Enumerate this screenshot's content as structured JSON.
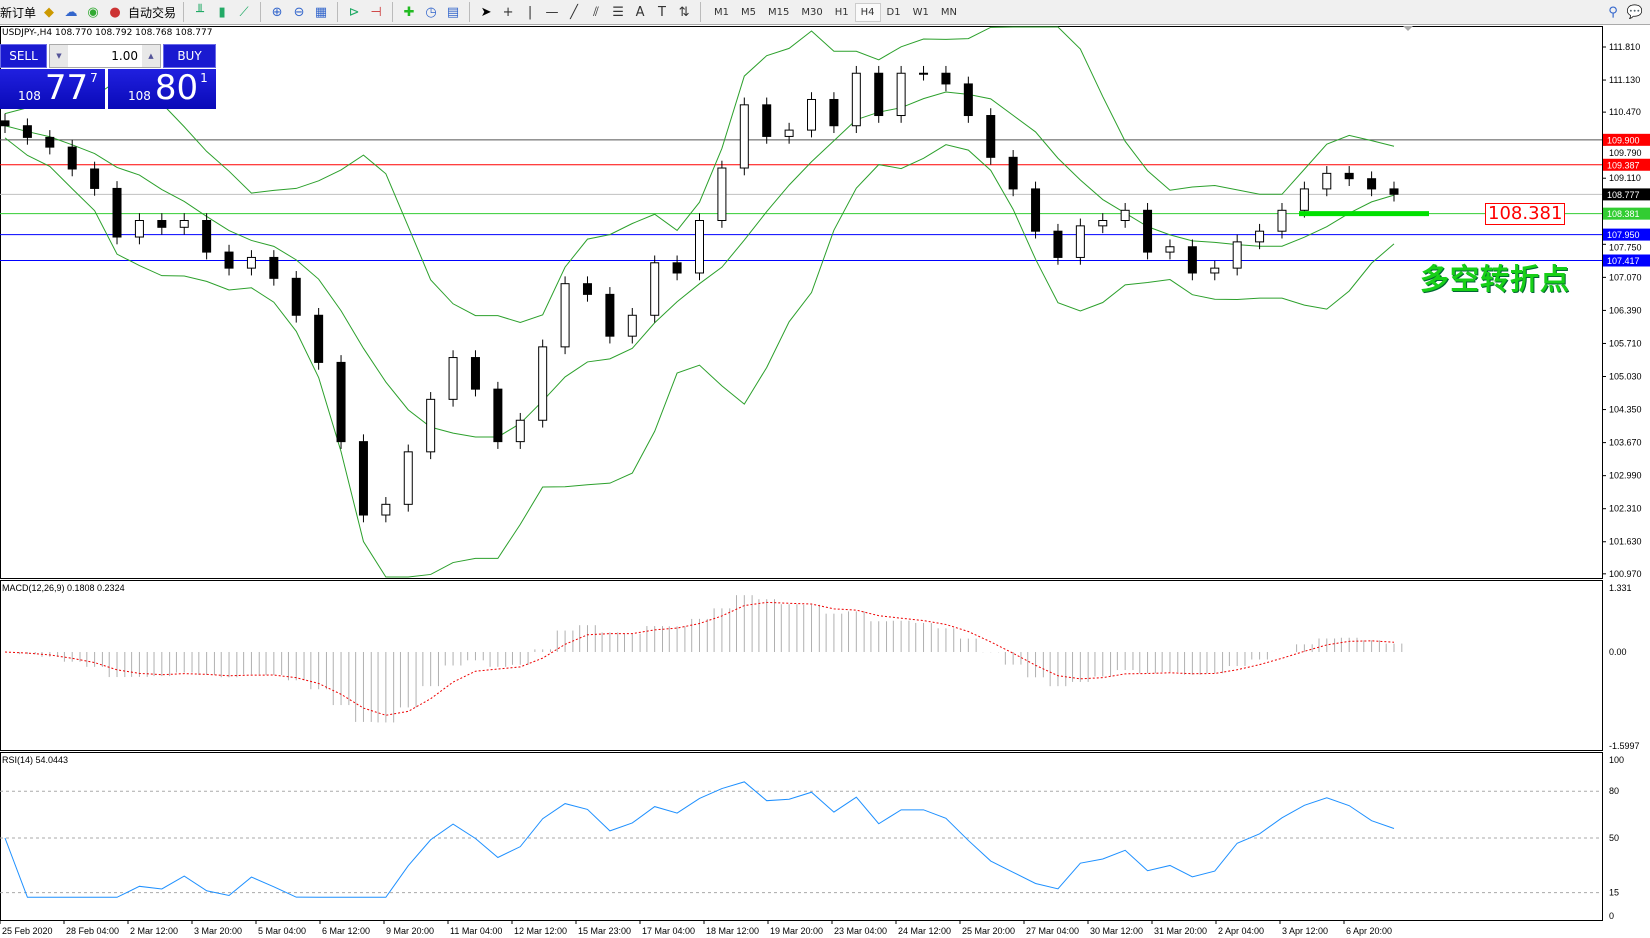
{
  "toolbar": {
    "new_order": "新订单",
    "auto_trade": "自动交易",
    "icons": [
      "book-icon",
      "cloud-icon",
      "signal-icon",
      "bar-chart-icon",
      "candle-chart-icon",
      "line-chart-icon",
      "zoom-in-icon",
      "zoom-out-icon",
      "tile-icon",
      "autoscroll-icon",
      "chart-shift-icon",
      "indicators-icon",
      "periods-icon",
      "templates-icon",
      "cursor-icon",
      "crosshair-icon",
      "vline-icon",
      "hline-icon",
      "trendline-icon",
      "fibo-icon",
      "grid-icon",
      "text-icon",
      "label-icon",
      "arrows-icon"
    ],
    "timeframes": [
      "M1",
      "M5",
      "M15",
      "M30",
      "H1",
      "H4",
      "D1",
      "W1",
      "MN"
    ],
    "active_timeframe": "H4"
  },
  "chart": {
    "header": "USDJPY-,H4  108.770 108.792 108.768 108.777",
    "sell_label": "SELL",
    "buy_label": "BUY",
    "lot": "1.00",
    "sell_price": {
      "small": "108",
      "big": "77",
      "sup": "7"
    },
    "buy_price": {
      "small": "108",
      "big": "80",
      "sup": "1"
    },
    "annotation": "多空转折点",
    "annotation_price": "108.381",
    "price_ticks": [
      "111.810",
      "111.130",
      "110.470",
      "109.790",
      "109.110",
      "107.750",
      "107.070",
      "106.390",
      "105.710",
      "105.030",
      "104.350",
      "103.670",
      "102.990",
      "102.310",
      "101.630",
      "100.970"
    ],
    "levels": [
      {
        "price": 109.9,
        "label": "109.900",
        "color": "#ff0000",
        "line": "#555555"
      },
      {
        "price": 109.387,
        "label": "109.387",
        "color": "#ff0000",
        "line": "#ff0000"
      },
      {
        "price": 108.777,
        "label": "108.777",
        "color": "#000000",
        "line": "#c0c0c0"
      },
      {
        "price": 108.381,
        "label": "108.381",
        "color": "#32cd32",
        "line": "#32cd32"
      },
      {
        "price": 107.95,
        "label": "107.950",
        "color": "#0000ff",
        "line": "#0000ff"
      },
      {
        "price": 107.417,
        "label": "107.417",
        "color": "#0000ff",
        "line": "#0000ff"
      }
    ],
    "time_labels": [
      "25 Feb 2020",
      "28 Feb 04:00",
      "2 Mar 12:00",
      "3 Mar 20:00",
      "5 Mar 04:00",
      "6 Mar 12:00",
      "9 Mar 20:00",
      "11 Mar 04:00",
      "12 Mar 12:00",
      "15 Mar 23:00",
      "17 Mar 04:00",
      "18 Mar 12:00",
      "19 Mar 20:00",
      "23 Mar 04:00",
      "24 Mar 12:00",
      "25 Mar 20:00",
      "27 Mar 04:00",
      "30 Mar 12:00",
      "31 Mar 20:00",
      "2 Apr 04:00",
      "3 Apr 12:00",
      "6 Apr 20:00"
    ]
  },
  "macd": {
    "label": "MACD(12,26,9) 0.1808 0.2324",
    "ticks": [
      "1.331",
      "0.00",
      "-1.5997"
    ]
  },
  "rsi": {
    "label": "RSI(14) 54.0443",
    "ticks": [
      "100",
      "80",
      "50",
      "15",
      "0"
    ]
  },
  "chart_data": {
    "type": "candlestick",
    "symbol": "USDJPY-",
    "timeframe": "H4",
    "closes": [
      110.19,
      109.95,
      109.75,
      109.3,
      108.9,
      107.9,
      108.24,
      108.1,
      108.24,
      107.59,
      107.26,
      107.48,
      107.05,
      106.29,
      105.32,
      103.69,
      102.18,
      102.4,
      103.48,
      104.56,
      105.42,
      104.77,
      103.69,
      104.13,
      105.64,
      106.94,
      106.72,
      105.86,
      106.29,
      107.37,
      107.16,
      108.24,
      109.32,
      110.62,
      109.97,
      110.1,
      110.73,
      110.19,
      111.27,
      110.4,
      111.27,
      111.27,
      111.05,
      110.4,
      109.54,
      108.89,
      108.02,
      107.48,
      108.13,
      108.24,
      108.45,
      107.59,
      107.7,
      107.16,
      107.26,
      107.8,
      108.02,
      108.45,
      108.89,
      109.21,
      109.1,
      108.89,
      108.78
    ],
    "ylim": [
      100.97,
      111.81
    ]
  }
}
